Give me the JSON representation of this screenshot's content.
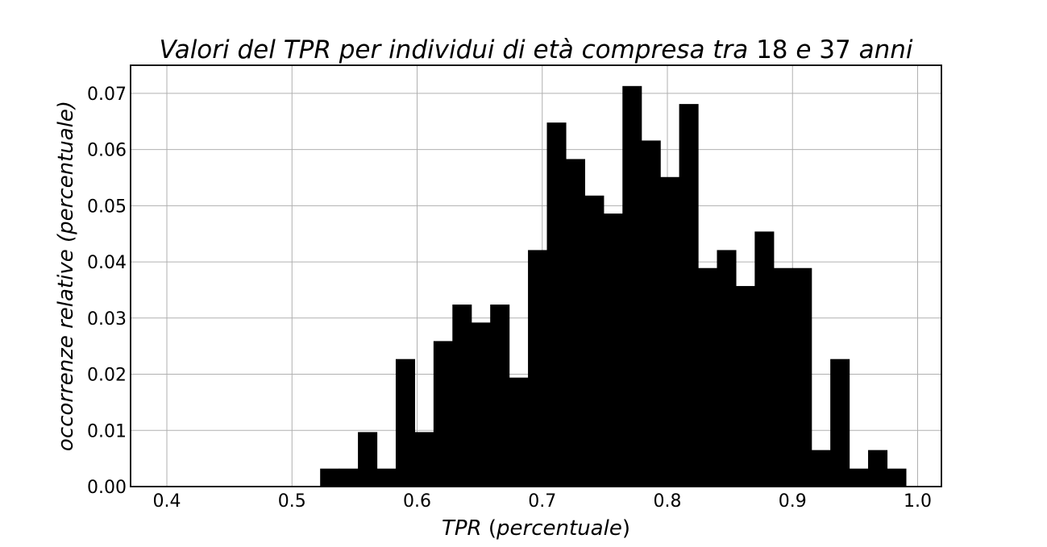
{
  "chart_data": {
    "type": "bar",
    "title": {
      "segments": [
        {
          "text": "Valori del TPR per individui di età compresa tra ",
          "italic": true
        },
        {
          "text": "18",
          "italic": false
        },
        {
          "text": " e ",
          "italic": true
        },
        {
          "text": "37",
          "italic": false
        },
        {
          "text": " anni",
          "italic": true
        }
      ]
    },
    "xlabel": {
      "segments": [
        {
          "text": "TPR",
          "italic": true
        },
        {
          "text": " (",
          "italic": false
        },
        {
          "text": "percentuale",
          "italic": true
        },
        {
          "text": ")",
          "italic": false
        }
      ]
    },
    "ylabel": {
      "segments": [
        {
          "text": "occorrenze relative (percentuale)",
          "italic": true
        }
      ]
    },
    "xlim": [
      0.371,
      1.019
    ],
    "ylim": [
      0.0,
      0.075
    ],
    "xticks": [
      0.4,
      0.5,
      0.6,
      0.7,
      0.8,
      0.9,
      1.0
    ],
    "xtick_labels": [
      "0.4",
      "0.5",
      "0.6",
      "0.7",
      "0.8",
      "0.9",
      "1.0"
    ],
    "yticks": [
      0.0,
      0.01,
      0.02,
      0.03,
      0.04,
      0.05,
      0.06,
      0.07
    ],
    "ytick_labels": [
      "0.00",
      "0.01",
      "0.02",
      "0.03",
      "0.04",
      "0.05",
      "0.06",
      "0.07"
    ],
    "grid": true,
    "bin_start": 0.5225,
    "bin_width": 0.0151,
    "values": [
      0.0032,
      0.0032,
      0.0097,
      0.0032,
      0.0227,
      0.0097,
      0.0259,
      0.0324,
      0.0292,
      0.0324,
      0.0194,
      0.0421,
      0.0648,
      0.0583,
      0.0518,
      0.0486,
      0.0713,
      0.0616,
      0.0551,
      0.0681,
      0.0389,
      0.0421,
      0.0357,
      0.0454,
      0.0389,
      0.0389,
      0.0065,
      0.0227,
      0.0032,
      0.0065,
      0.0032
    ],
    "bar_color": "#000000",
    "grid_color": "#b0b0b0"
  }
}
